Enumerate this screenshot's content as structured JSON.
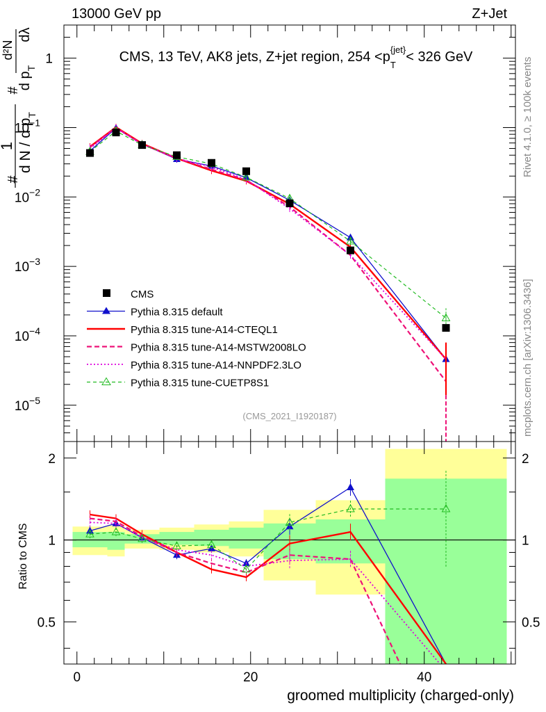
{
  "header": {
    "left": "13000 GeV pp",
    "right": "Z+Jet"
  },
  "side": {
    "rivet": "Rivet 4.1.0, ≥ 100k events",
    "mcplots": "mcplots.cern.ch [arXiv:1306.3436]"
  },
  "chart_data": [
    {
      "type": "line",
      "panel": "main",
      "title_parts": {
        "before": "CMS, 13 TeV, AK8 jets, Z+jet region, 254 <p",
        "sub": "T",
        "sup": "{jet}",
        "after": "< 326 GeV"
      },
      "ylabel_parts": {
        "one": "1",
        "lower": "d N / d p",
        "lower_sub": "T",
        "upper": "d²N",
        "upper_den": "d p",
        "upper_den_sub": "T",
        "lambda": "dλ",
        "hash": "#"
      },
      "yscale": "log",
      "ylim": [
        3e-06,
        3.0
      ],
      "y_ticks": [
        {
          "v": 1e-05,
          "label": "10",
          "exp": "−5"
        },
        {
          "v": 0.0001,
          "label": "10",
          "exp": "−4"
        },
        {
          "v": 0.001,
          "label": "10",
          "exp": "−3"
        },
        {
          "v": 0.01,
          "label": "10",
          "exp": "−2"
        },
        {
          "v": 0.1,
          "label": "10",
          "exp": "−1"
        },
        {
          "v": 1,
          "label": "1",
          "exp": ""
        }
      ],
      "xlim": [
        -1.5,
        50.5
      ],
      "x": [
        1.5,
        4.5,
        7.5,
        11.5,
        15.5,
        19.5,
        24.5,
        31.5,
        42.5
      ],
      "series": [
        {
          "name": "CMS",
          "style": "data",
          "color": "#000000",
          "values": [
            0.043,
            0.085,
            0.056,
            0.04,
            0.031,
            0.0235,
            0.0081,
            0.0017,
            0.00013
          ]
        },
        {
          "name": "Pythia 8.315 default",
          "style": "solid-tri",
          "color": "#0000cc",
          "values": [
            0.046,
            0.098,
            0.058,
            0.035,
            0.028,
            0.019,
            0.009,
            0.0026,
            4.6e-05
          ]
        },
        {
          "name": "Pythia 8.315 tune-A14-CTEQL1",
          "style": "solid-thick",
          "color": "#ff0000",
          "values": [
            0.053,
            0.101,
            0.059,
            0.036,
            0.024,
            0.017,
            0.0079,
            0.0019,
            4.6e-05
          ]
        },
        {
          "name": "Pythia 8.315 tune-A14-MSTW2008LO",
          "style": "dashed",
          "color": "#ee1177",
          "values": [
            0.052,
            0.1,
            0.058,
            0.036,
            0.025,
            0.0175,
            0.0072,
            0.00145,
            2.2e-05
          ]
        },
        {
          "name": "Pythia 8.315 tune-A14-NNPDF2.3LO",
          "style": "dotted",
          "color": "#dd00dd",
          "values": [
            0.05,
            0.098,
            0.057,
            0.036,
            0.027,
            0.0178,
            0.0068,
            0.00145,
            4.6e-05
          ]
        },
        {
          "name": "Pythia 8.315 tune-CUETP8S1",
          "style": "dashed-opentri",
          "color": "#22bb22",
          "values": [
            0.045,
            0.089,
            0.056,
            0.038,
            0.03,
            0.0192,
            0.0095,
            0.0023,
            0.00018
          ]
        }
      ],
      "legend_position": "lower-left",
      "annotation": "(CMS_2021_I1920187)"
    },
    {
      "type": "line",
      "panel": "ratio",
      "ylabel": "Ratio to CMS",
      "ylim": [
        0.35,
        2.3
      ],
      "y_ticks": [
        0.5,
        1,
        2
      ],
      "xlim": [
        -1.5,
        50.5
      ],
      "x_ticks": [
        0,
        20,
        40
      ],
      "xlabel": "groomed multiplicity (charged-only)",
      "bands": [
        {
          "x0": -0.5,
          "x1": 3.5,
          "y1_lo": 0.94,
          "y1_hi": 1.07,
          "y2_lo": 0.88,
          "y2_hi": 1.12
        },
        {
          "x0": 3.5,
          "x1": 5.5,
          "y1_lo": 0.92,
          "y1_hi": 1.07,
          "y2_lo": 0.87,
          "y2_hi": 1.13
        },
        {
          "x0": 5.5,
          "x1": 9.5,
          "y1_lo": 0.97,
          "y1_hi": 1.05,
          "y2_lo": 0.93,
          "y2_hi": 1.09
        },
        {
          "x0": 9.5,
          "x1": 13.5,
          "y1_lo": 0.96,
          "y1_hi": 1.07,
          "y2_lo": 0.92,
          "y2_hi": 1.11
        },
        {
          "x0": 13.5,
          "x1": 17.5,
          "y1_lo": 0.95,
          "y1_hi": 1.09,
          "y2_lo": 0.9,
          "y2_hi": 1.14
        },
        {
          "x0": 17.5,
          "x1": 21.5,
          "y1_lo": 0.93,
          "y1_hi": 1.11,
          "y2_lo": 0.87,
          "y2_hi": 1.17
        },
        {
          "x0": 21.5,
          "x1": 27.5,
          "y1_lo": 0.85,
          "y1_hi": 1.15,
          "y2_lo": 0.71,
          "y2_hi": 1.29
        },
        {
          "x0": 27.5,
          "x1": 35.5,
          "y1_lo": 0.82,
          "y1_hi": 1.19,
          "y2_lo": 0.63,
          "y2_hi": 1.4
        },
        {
          "x0": 35.5,
          "x1": 49.5,
          "y1_lo": 0.35,
          "y1_hi": 1.68,
          "y2_lo": 0.35,
          "y2_hi": 2.16
        }
      ],
      "series": [
        {
          "name": "Pythia 8.315 default",
          "values": [
            1.08,
            1.15,
            1.02,
            0.88,
            0.93,
            0.82,
            1.12,
            1.56,
            0.35
          ]
        },
        {
          "name": "Pythia 8.315 tune-A14-CTEQL1",
          "values": [
            1.24,
            1.2,
            1.05,
            0.9,
            0.78,
            0.73,
            0.97,
            1.07,
            0.35
          ]
        },
        {
          "name": "Pythia 8.315 tune-A14-MSTW2008LO",
          "values": [
            1.2,
            1.17,
            1.03,
            0.9,
            0.82,
            0.76,
            0.88,
            0.85,
            0.22
          ]
        },
        {
          "name": "Pythia 8.315 tune-A14-NNPDF2.3LO",
          "values": [
            1.16,
            1.15,
            1.02,
            0.92,
            0.88,
            0.8,
            0.84,
            0.85,
            0.35
          ]
        },
        {
          "name": "Pythia 8.315 tune-CUETP8S1",
          "values": [
            1.05,
            1.07,
            1.01,
            0.95,
            0.96,
            0.78,
            1.16,
            1.3,
            1.3
          ]
        }
      ]
    }
  ]
}
